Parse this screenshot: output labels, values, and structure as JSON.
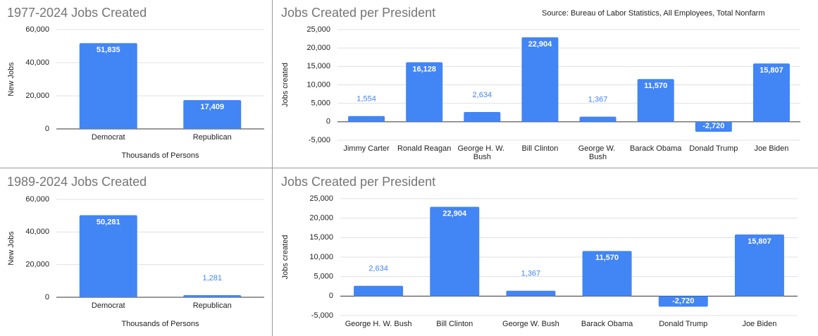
{
  "chart_data": [
    {
      "type": "bar",
      "title": "1977-2024 Jobs Created",
      "y_label": "New Jobs",
      "x_label": "Thousands of Persons",
      "categories": [
        "Democrat",
        "Republican"
      ],
      "values": [
        51835,
        17409
      ],
      "value_labels": [
        "51,835",
        "17,409"
      ],
      "color": "#4285f4",
      "ylim": [
        0,
        60000
      ],
      "yticks": [
        0,
        {
          "value": 20000,
          "label": "20,000"
        },
        {
          "value": 40000,
          "label": "40,000"
        },
        {
          "value": 60000,
          "label": "60,000"
        }
      ],
      "grid": true
    },
    {
      "type": "bar",
      "title": "Jobs Created per President",
      "annotation": "Source: Bureau of Labor Statistics, All Employees, Total Nonfarm",
      "y_label": "Jobs created",
      "categories": [
        "Jimmy Carter",
        "Ronald Reagan",
        "George H. W. Bush",
        "Bill Clinton",
        "George W. Bush",
        "Barack Obama",
        "Donald Trump",
        "Joe Biden"
      ],
      "values": [
        1554,
        16128,
        2634,
        22904,
        1367,
        11570,
        -2720,
        15807
      ],
      "value_labels": [
        "1,554",
        "16,128",
        "2,634",
        "22,904",
        "1,367",
        "11,570",
        "-2,720",
        "15,807"
      ],
      "color": "#4285f4",
      "ylim": [
        -5000,
        25000
      ],
      "yticks": [
        {
          "value": -5000,
          "label": "-5,000"
        },
        0,
        {
          "value": 5000,
          "label": "5,000"
        },
        {
          "value": 10000,
          "label": "10,000"
        },
        {
          "value": 15000,
          "label": "15,000"
        },
        {
          "value": 20000,
          "label": "20,000"
        },
        {
          "value": 25000,
          "label": "25,000"
        }
      ],
      "grid": true
    },
    {
      "type": "bar",
      "title": "1989-2024 Jobs Created",
      "y_label": "New Jobs",
      "x_label": "Thousands of Persons",
      "categories": [
        "Democrat",
        "Republican"
      ],
      "values": [
        50281,
        1281
      ],
      "value_labels": [
        "50,281",
        "1,281"
      ],
      "color": "#4285f4",
      "ylim": [
        0,
        60000
      ],
      "yticks": [
        0,
        {
          "value": 20000,
          "label": "20,000"
        },
        {
          "value": 40000,
          "label": "40,000"
        },
        {
          "value": 60000,
          "label": "60,000"
        }
      ],
      "grid": true
    },
    {
      "type": "bar",
      "title": "Jobs Created per President",
      "y_label": "Jobs created",
      "categories": [
        "George H. W. Bush",
        "Bill Clinton",
        "George W. Bush",
        "Barack Obama",
        "Donald Trump",
        "Joe Biden"
      ],
      "values": [
        2634,
        22904,
        1367,
        11570,
        -2720,
        15807
      ],
      "value_labels": [
        "2,634",
        "22,904",
        "1,367",
        "11,570",
        "-2,720",
        "15,807"
      ],
      "color": "#4285f4",
      "ylim": [
        -5000,
        25000
      ],
      "yticks": [
        {
          "value": -5000,
          "label": "-5,000"
        },
        0,
        {
          "value": 5000,
          "label": "5,000"
        },
        {
          "value": 10000,
          "label": "10,000"
        },
        {
          "value": 15000,
          "label": "15,000"
        },
        {
          "value": 20000,
          "label": "20,000"
        },
        {
          "value": 25000,
          "label": "25,000"
        }
      ],
      "grid": true
    }
  ]
}
